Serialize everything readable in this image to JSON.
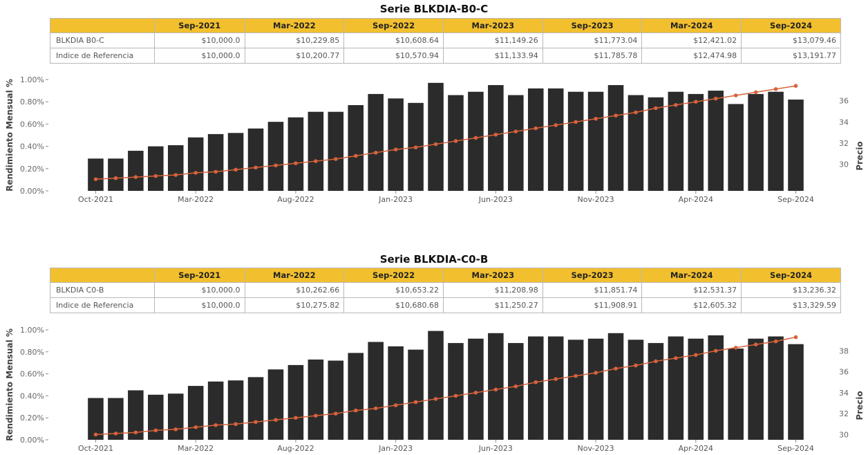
{
  "charts": [
    {
      "title": "Serie BLKDIA-B0-C",
      "table": {
        "headers": [
          "Sep-2021",
          "Mar-2022",
          "Sep-2022",
          "Mar-2023",
          "Sep-2023",
          "Mar-2024",
          "Sep-2024"
        ],
        "rows": [
          {
            "label": "BLKDIA B0-C",
            "values": [
              "$10,000.0",
              "$10,229.85",
              "$10,608.64",
              "$11,149.26",
              "$11,773.04",
              "$12,421.02",
              "$13,079.46"
            ]
          },
          {
            "label": "Indice de Referencia",
            "values": [
              "$10,000.0",
              "$10,200.77",
              "$10,570.94",
              "$11,133.94",
              "$11,785.78",
              "$12,474.98",
              "$13,191.77"
            ]
          }
        ]
      },
      "chart_data": {
        "type": "bar",
        "ylabel": "Rendimiento Mensual %",
        "y2label": "Precio",
        "x_tick_labels": [
          "Oct-2021",
          "Mar-2022",
          "Aug-2022",
          "Jan-2023",
          "Jun-2023",
          "Nov-2023",
          "Apr-2024",
          "Sep-2024"
        ],
        "y_ticks": [
          "0.00%",
          "0.20%",
          "0.40%",
          "0.60%",
          "0.80%",
          "1.00%"
        ],
        "y_lim": [
          0,
          1.0
        ],
        "y2_ticks": [
          30,
          32,
          34,
          36
        ],
        "y2_lim": [
          27.5,
          38
        ],
        "bar_color": "#2b2b2b",
        "line_color": "#d9623b",
        "bars": [
          0.29,
          0.29,
          0.36,
          0.4,
          0.41,
          0.48,
          0.51,
          0.52,
          0.56,
          0.62,
          0.66,
          0.71,
          0.71,
          0.77,
          0.87,
          0.83,
          0.79,
          0.97,
          0.86,
          0.89,
          0.95,
          0.86,
          0.92,
          0.92,
          0.89,
          0.89,
          0.95,
          0.86,
          0.84,
          0.89,
          0.87,
          0.9,
          0.78,
          0.87,
          0.89,
          0.82
        ],
        "line": [
          28.6,
          28.7,
          28.8,
          28.9,
          29.0,
          29.2,
          29.3,
          29.5,
          29.7,
          29.9,
          30.1,
          30.3,
          30.5,
          30.8,
          31.1,
          31.4,
          31.6,
          31.9,
          32.2,
          32.5,
          32.8,
          33.1,
          33.4,
          33.7,
          34.0,
          34.3,
          34.6,
          34.9,
          35.3,
          35.6,
          35.9,
          36.2,
          36.5,
          36.8,
          37.1,
          37.4
        ]
      }
    },
    {
      "title": "Serie BLKDIA-C0-B",
      "table": {
        "headers": [
          "Sep-2021",
          "Mar-2022",
          "Sep-2022",
          "Mar-2023",
          "Sep-2023",
          "Mar-2024",
          "Sep-2024"
        ],
        "rows": [
          {
            "label": "BLKDIA C0-B",
            "values": [
              "$10,000.0",
              "$10,262.66",
              "$10,653.22",
              "$11,208.98",
              "$11,851.74",
              "$12,531.37",
              "$13,236.32"
            ]
          },
          {
            "label": "Indice de Referencia",
            "values": [
              "$10,000.0",
              "$10,275.82",
              "$10,680.68",
              "$11,250.27",
              "$11,908.91",
              "$12,605.32",
              "$13,329.59"
            ]
          }
        ]
      },
      "chart_data": {
        "type": "bar",
        "ylabel": "Rendimiento Mensual %",
        "y2label": "Precio",
        "x_tick_labels": [
          "Oct-2021",
          "Mar-2022",
          "Aug-2022",
          "Jan-2023",
          "Jun-2023",
          "Nov-2023",
          "Apr-2024",
          "Sep-2024"
        ],
        "y_ticks": [
          "0.00%",
          "0.20%",
          "0.40%",
          "0.60%",
          "0.80%",
          "1.00%"
        ],
        "y_lim": [
          0,
          1.0
        ],
        "y2_ticks": [
          30,
          32,
          34,
          36,
          38
        ],
        "y2_lim": [
          29.5,
          40
        ],
        "bar_color": "#2b2b2b",
        "line_color": "#d9623b",
        "bars": [
          0.38,
          0.38,
          0.45,
          0.41,
          0.42,
          0.49,
          0.53,
          0.54,
          0.57,
          0.64,
          0.68,
          0.73,
          0.72,
          0.79,
          0.89,
          0.85,
          0.82,
          0.99,
          0.88,
          0.92,
          0.97,
          0.88,
          0.94,
          0.94,
          0.91,
          0.92,
          0.97,
          0.91,
          0.88,
          0.94,
          0.92,
          0.95,
          0.83,
          0.92,
          0.94,
          0.87
        ],
        "line": [
          30.0,
          30.1,
          30.2,
          30.4,
          30.5,
          30.7,
          30.9,
          31.0,
          31.2,
          31.4,
          31.6,
          31.8,
          32.0,
          32.3,
          32.5,
          32.8,
          33.1,
          33.4,
          33.7,
          34.0,
          34.3,
          34.6,
          35.0,
          35.3,
          35.6,
          35.9,
          36.3,
          36.6,
          37.0,
          37.3,
          37.6,
          38.0,
          38.3,
          38.6,
          38.9,
          39.3
        ]
      }
    }
  ]
}
